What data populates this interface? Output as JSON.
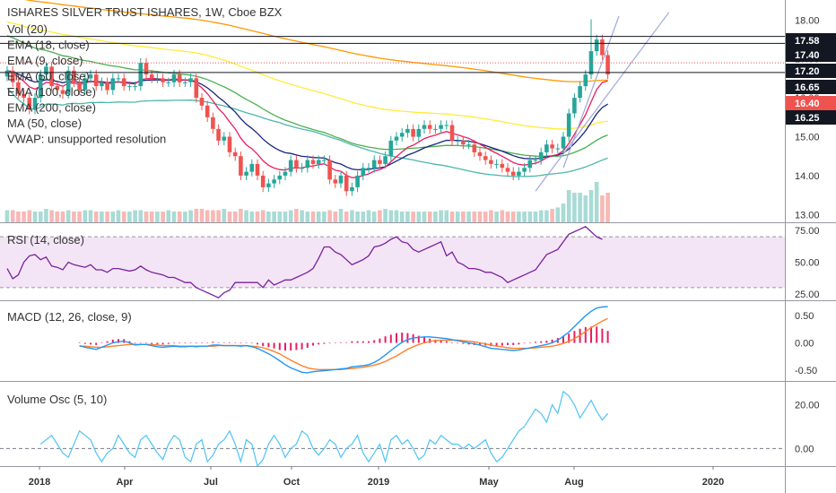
{
  "header": {
    "title": "ISHARES SILVER TRUST ISHARES, 1W, Cboe BZX",
    "legend": [
      "Vol (20)",
      "EMA (18, close)",
      "EMA (9, close)",
      "EMA (50, close)",
      "EMA (100, close)",
      "EMA (200, close)",
      "MA (50, close)",
      "VWAP: unsupported resolution"
    ]
  },
  "panes": {
    "rsi_label": "RSI (14, close)",
    "macd_label": "MACD (12, 26, close, 9)",
    "vosc_label": "Volume Osc (5, 10)"
  },
  "colors": {
    "up": "#26a69a",
    "down": "#ef5350",
    "vol_up": "#a9dbd5",
    "vol_down": "#f7b8b6",
    "ema18": "#1a237e",
    "ema9": "#e91e63",
    "ema50": "#4caf50",
    "ema100": "#ffeb3b",
    "ema200": "#ff9800",
    "ma50": "#4db6ac",
    "rsi": "#7b1fa2",
    "rsi_band": "#f3e5f5",
    "macd": "#2196f3",
    "signal": "#ff7f2a",
    "hist": "#e91e63",
    "vosc": "#4fc3f7"
  },
  "chart_data": [
    {
      "type": "candlestick",
      "pane": "price",
      "x_ticks": [
        "2018",
        "Apr",
        "Jul",
        "Oct",
        "2019",
        "May",
        "Aug",
        "2020"
      ],
      "y_ticks": [
        13.0,
        14.0,
        15.0,
        16.0,
        17.0,
        18.0
      ],
      "ylim": [
        12.8,
        18.4
      ],
      "price_tags": [
        {
          "value": "17.58",
          "color": "#131722"
        },
        {
          "value": "17.40",
          "color": "#131722"
        },
        {
          "value": "17.20",
          "color": "#131722"
        },
        {
          "value": "16.65",
          "color": "#131722"
        },
        {
          "value": "16.40",
          "color": "#ef5350"
        },
        {
          "value": "16.25",
          "color": "#131722"
        }
      ],
      "closes": [
        16.7,
        16.4,
        16.1,
        16.0,
        15.7,
        16.0,
        16.6,
        16.8,
        16.3,
        16.2,
        16.1,
        16.7,
        16.4,
        16.2,
        16.5,
        16.6,
        16.3,
        16.4,
        16.2,
        16.5,
        16.5,
        16.3,
        16.3,
        16.3,
        16.9,
        16.6,
        16.5,
        16.5,
        16.4,
        16.4,
        16.6,
        16.4,
        16.4,
        16.5,
        16.0,
        15.8,
        15.5,
        15.2,
        14.9,
        15.0,
        14.6,
        14.5,
        14.0,
        14.1,
        14.3,
        14.0,
        13.7,
        13.8,
        13.9,
        14.0,
        14.1,
        14.4,
        14.2,
        14.2,
        14.4,
        14.3,
        14.4,
        14.4,
        13.9,
        13.8,
        14.0,
        13.6,
        13.7,
        14.0,
        14.2,
        14.2,
        14.4,
        14.3,
        14.5,
        14.9,
        15.0,
        15.1,
        15.2,
        15.0,
        15.2,
        15.3,
        15.2,
        15.2,
        15.3,
        15.3,
        14.9,
        14.9,
        14.8,
        14.8,
        14.6,
        14.5,
        14.4,
        14.3,
        14.3,
        14.2,
        14.1,
        14.0,
        14.1,
        14.2,
        14.4,
        14.4,
        14.6,
        14.8,
        14.7,
        14.7,
        15.0,
        15.6,
        16.0,
        16.3,
        16.6,
        17.2,
        17.5,
        17.1,
        16.6
      ],
      "volume": [
        9,
        9,
        8,
        8,
        9,
        8,
        8,
        10,
        9,
        8,
        8,
        9,
        8,
        8,
        9,
        9,
        8,
        8,
        8,
        8,
        9,
        8,
        8,
        9,
        9,
        8,
        8,
        8,
        8,
        9,
        8,
        8,
        8,
        9,
        10,
        10,
        9,
        9,
        9,
        10,
        8,
        8,
        10,
        9,
        8,
        8,
        9,
        8,
        8,
        8,
        8,
        9,
        10,
        9,
        8,
        8,
        8,
        8,
        9,
        8,
        10,
        8,
        9,
        8,
        8,
        9,
        8,
        9,
        10,
        9,
        9,
        8,
        8,
        8,
        8,
        8,
        8,
        8,
        9,
        9,
        8,
        8,
        8,
        8,
        8,
        8,
        8,
        9,
        8,
        9,
        8,
        8,
        8,
        8,
        8,
        8,
        9,
        9,
        10,
        11,
        14,
        24,
        22,
        22,
        20,
        24,
        30,
        20,
        22
      ]
    },
    {
      "type": "line",
      "pane": "rsi",
      "y_ticks": [
        25.0,
        50.0,
        75.0
      ],
      "ylim": [
        20,
        80
      ],
      "bands": [
        30,
        70
      ],
      "values": [
        45,
        37,
        40,
        50,
        55,
        56,
        52,
        54,
        47,
        46,
        44,
        50,
        48,
        47,
        46,
        48,
        44,
        44,
        42,
        45,
        45,
        44,
        43,
        44,
        47,
        44,
        42,
        41,
        40,
        38,
        38,
        36,
        34,
        34,
        30,
        28,
        26,
        24,
        22,
        26,
        28,
        34,
        34,
        34,
        34,
        34,
        30,
        36,
        32,
        34,
        36,
        36,
        38,
        40,
        42,
        45,
        53,
        62,
        62,
        58,
        56,
        52,
        48,
        50,
        52,
        55,
        62,
        63,
        65,
        68,
        70,
        66,
        65,
        60,
        58,
        60,
        62,
        64,
        66,
        55,
        58,
        50,
        48,
        45,
        45,
        44,
        42,
        42,
        40,
        38,
        34,
        36,
        38,
        40,
        42,
        44,
        50,
        56,
        58,
        60,
        66,
        72,
        74,
        76,
        78,
        74,
        70,
        68
      ],
      "ma_values": [
        52,
        52,
        52,
        52,
        52,
        52,
        52,
        52,
        51,
        51,
        51,
        51,
        51,
        51,
        51,
        50,
        50,
        50,
        50,
        49,
        49,
        48,
        48,
        48,
        48,
        47,
        47,
        46,
        46,
        45,
        45,
        44,
        44,
        43,
        42,
        42,
        41,
        40,
        39,
        39,
        38,
        38,
        37,
        37,
        37,
        37,
        37,
        37,
        37,
        38,
        38,
        38,
        39,
        39,
        40,
        41,
        42,
        43,
        44,
        45,
        46,
        46,
        47,
        47,
        48,
        49,
        50,
        51,
        52,
        53,
        55,
        56,
        57,
        57,
        57,
        57,
        58,
        58,
        58,
        58,
        57,
        56,
        56,
        55,
        54,
        53,
        52,
        51,
        50,
        49,
        48,
        47,
        47,
        46,
        46,
        46,
        47,
        48,
        49,
        50,
        52,
        54,
        56,
        58,
        60,
        62,
        63,
        64
      ]
    },
    {
      "type": "line",
      "pane": "macd",
      "y_ticks": [
        0.5,
        0.0,
        -0.5
      ],
      "ylim": [
        -0.7,
        0.75
      ],
      "macd": [
        -0.05,
        -0.08,
        -0.1,
        -0.12,
        -0.08,
        -0.04,
        0.0,
        0.02,
        0.03,
        0.0,
        -0.04,
        -0.03,
        -0.03,
        -0.05,
        -0.07,
        -0.08,
        -0.07,
        -0.06,
        -0.07,
        -0.07,
        -0.06,
        -0.07,
        -0.06,
        -0.06,
        -0.04,
        -0.04,
        -0.05,
        -0.05,
        -0.05,
        -0.06,
        -0.05,
        -0.07,
        -0.1,
        -0.15,
        -0.2,
        -0.26,
        -0.33,
        -0.4,
        -0.46,
        -0.5,
        -0.54,
        -0.55,
        -0.53,
        -0.52,
        -0.51,
        -0.5,
        -0.49,
        -0.48,
        -0.47,
        -0.44,
        -0.43,
        -0.42,
        -0.4,
        -0.36,
        -0.3,
        -0.22,
        -0.14,
        -0.06,
        0.01,
        0.06,
        0.09,
        0.1,
        0.11,
        0.11,
        0.1,
        0.09,
        0.08,
        0.06,
        0.04,
        0.02,
        0.0,
        -0.02,
        -0.04,
        -0.07,
        -0.1,
        -0.11,
        -0.12,
        -0.13,
        -0.14,
        -0.13,
        -0.11,
        -0.09,
        -0.07,
        -0.05,
        -0.03,
        0.0,
        0.05,
        0.12,
        0.2,
        0.3,
        0.4,
        0.5,
        0.58,
        0.64,
        0.66,
        0.67
      ],
      "signal": [
        -0.06,
        -0.06,
        -0.07,
        -0.08,
        -0.08,
        -0.07,
        -0.06,
        -0.05,
        -0.04,
        -0.03,
        -0.03,
        -0.03,
        -0.03,
        -0.03,
        -0.04,
        -0.05,
        -0.05,
        -0.05,
        -0.06,
        -0.06,
        -0.06,
        -0.06,
        -0.06,
        -0.06,
        -0.06,
        -0.05,
        -0.05,
        -0.05,
        -0.05,
        -0.05,
        -0.05,
        -0.06,
        -0.07,
        -0.09,
        -0.12,
        -0.16,
        -0.2,
        -0.26,
        -0.32,
        -0.37,
        -0.42,
        -0.46,
        -0.48,
        -0.49,
        -0.49,
        -0.49,
        -0.49,
        -0.49,
        -0.48,
        -0.47,
        -0.46,
        -0.45,
        -0.43,
        -0.41,
        -0.38,
        -0.34,
        -0.29,
        -0.24,
        -0.18,
        -0.12,
        -0.07,
        -0.03,
        0.0,
        0.03,
        0.04,
        0.05,
        0.05,
        0.05,
        0.05,
        0.04,
        0.03,
        0.02,
        0.0,
        -0.02,
        -0.04,
        -0.06,
        -0.07,
        -0.09,
        -0.1,
        -0.1,
        -0.1,
        -0.1,
        -0.09,
        -0.08,
        -0.07,
        -0.06,
        -0.04,
        -0.01,
        0.03,
        0.08,
        0.14,
        0.21,
        0.28,
        0.34,
        0.4,
        0.45
      ],
      "hist": [
        0.01,
        -0.02,
        -0.03,
        -0.04,
        0.0,
        0.03,
        0.06,
        0.07,
        0.07,
        0.03,
        -0.01,
        0.0,
        0.0,
        -0.02,
        -0.03,
        -0.03,
        -0.02,
        -0.01,
        -0.01,
        -0.01,
        0.0,
        -0.01,
        0.0,
        0.0,
        0.02,
        0.01,
        0.0,
        0.0,
        0.0,
        -0.01,
        0.0,
        -0.01,
        -0.03,
        -0.06,
        -0.08,
        -0.1,
        -0.13,
        -0.14,
        -0.14,
        -0.13,
        -0.12,
        -0.09,
        -0.05,
        -0.03,
        -0.02,
        -0.01,
        0.0,
        0.01,
        0.01,
        0.03,
        0.03,
        0.03,
        0.03,
        0.05,
        0.08,
        0.12,
        0.15,
        0.18,
        0.19,
        0.18,
        0.16,
        0.13,
        0.11,
        0.08,
        0.06,
        0.04,
        0.03,
        0.01,
        -0.01,
        -0.02,
        -0.03,
        -0.04,
        -0.04,
        -0.05,
        -0.06,
        -0.05,
        -0.05,
        -0.04,
        -0.04,
        -0.03,
        -0.01,
        0.01,
        0.02,
        0.03,
        0.04,
        0.06,
        0.09,
        0.13,
        0.17,
        0.22,
        0.26,
        0.29,
        0.3,
        0.3,
        0.26,
        0.22
      ]
    },
    {
      "type": "line",
      "pane": "volume_osc",
      "y_ticks": [
        20.0,
        0.0
      ],
      "ylim": [
        -8,
        30
      ],
      "values": [
        2,
        4,
        6,
        2,
        -2,
        -4,
        2,
        8,
        6,
        4,
        -2,
        -6,
        -2,
        0,
        6,
        2,
        -2,
        -4,
        4,
        6,
        2,
        -2,
        -5,
        2,
        6,
        4,
        -4,
        -6,
        2,
        4,
        -6,
        -3,
        2,
        4,
        8,
        2,
        -6,
        4,
        2,
        -8,
        -5,
        2,
        6,
        2,
        -4,
        0,
        2,
        8,
        6,
        0,
        -3,
        0,
        4,
        2,
        -4,
        0,
        2,
        6,
        -2,
        -6,
        -2,
        2,
        -6,
        4,
        6,
        2,
        4,
        0,
        -5,
        -3,
        4,
        2,
        6,
        4,
        2,
        2,
        0,
        2,
        0,
        2,
        4,
        -2,
        -6,
        -4,
        0,
        4,
        8,
        10,
        14,
        18,
        16,
        12,
        20,
        16,
        26,
        24,
        20,
        14,
        18,
        22,
        17,
        13,
        16
      ]
    }
  ],
  "x_axis_labels": [
    "2018",
    "Apr",
    "Jul",
    "Oct",
    "2019",
    "May",
    "Aug",
    "2020"
  ]
}
